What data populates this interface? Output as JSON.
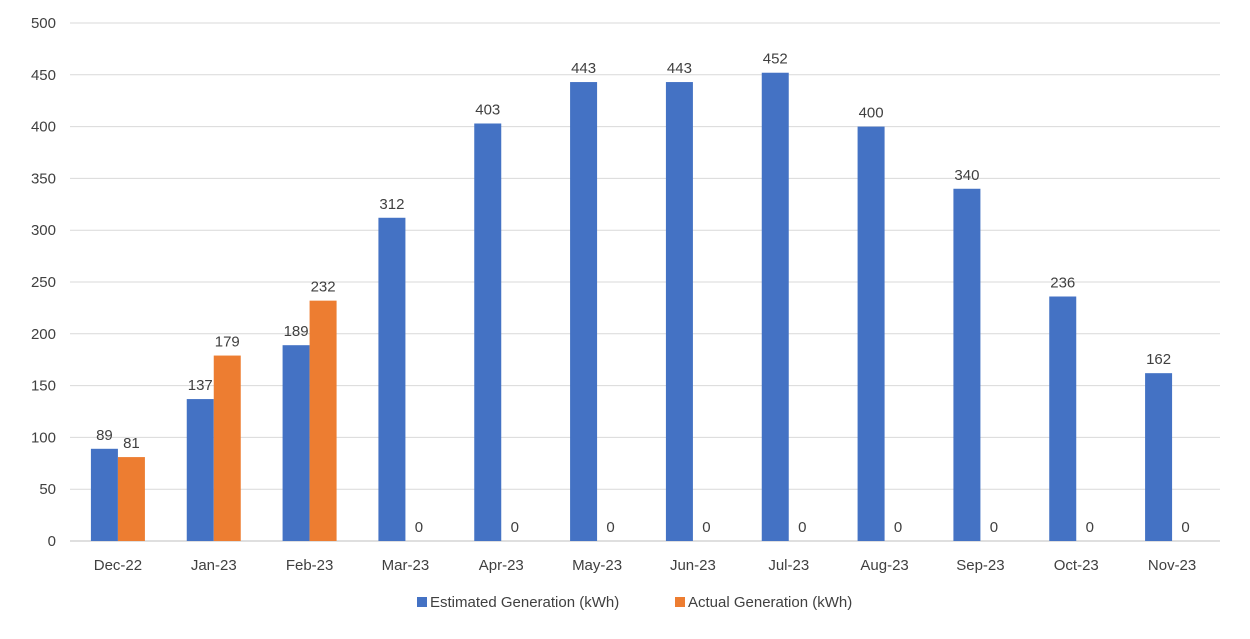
{
  "chart_data": {
    "type": "bar",
    "categories": [
      "Dec-22",
      "Jan-23",
      "Feb-23",
      "Mar-23",
      "Apr-23",
      "May-23",
      "Jun-23",
      "Jul-23",
      "Aug-23",
      "Sep-23",
      "Oct-23",
      "Nov-23"
    ],
    "series": [
      {
        "name": "Estimated Generation (kWh)",
        "color": "#4472C4",
        "values": [
          89,
          137,
          189,
          312,
          403,
          443,
          443,
          452,
          400,
          340,
          236,
          162
        ]
      },
      {
        "name": "Actual Generation (kWh)",
        "color": "#ED7D31",
        "values": [
          81,
          179,
          232,
          0,
          0,
          0,
          0,
          0,
          0,
          0,
          0,
          0
        ]
      }
    ],
    "ylim": [
      0,
      500
    ],
    "yticks": [
      0,
      50,
      100,
      150,
      200,
      250,
      300,
      350,
      400,
      450,
      500
    ],
    "grid": true,
    "data_labels": true,
    "legend_position": "bottom",
    "title": "",
    "xlabel": "",
    "ylabel": ""
  }
}
